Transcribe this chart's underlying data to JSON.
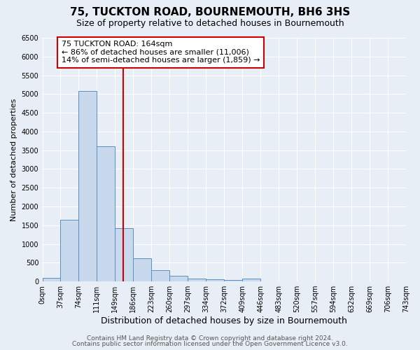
{
  "title": "75, TUCKTON ROAD, BOURNEMOUTH, BH6 3HS",
  "subtitle": "Size of property relative to detached houses in Bournemouth",
  "xlabel": "Distribution of detached houses by size in Bournemouth",
  "ylabel": "Number of detached properties",
  "bar_labels": [
    "0sqm",
    "37sqm",
    "74sqm",
    "111sqm",
    "149sqm",
    "186sqm",
    "223sqm",
    "260sqm",
    "297sqm",
    "334sqm",
    "372sqm",
    "409sqm",
    "446sqm",
    "483sqm",
    "520sqm",
    "557sqm",
    "594sqm",
    "632sqm",
    "669sqm",
    "706sqm",
    "743sqm"
  ],
  "bar_values": [
    100,
    1650,
    5080,
    3600,
    1430,
    620,
    300,
    150,
    80,
    50,
    30,
    80,
    10,
    0,
    0,
    0,
    0,
    0,
    0,
    0,
    0
  ],
  "bar_color": "#c8d8ed",
  "bar_edge_color": "#5a8fc0",
  "bg_color": "#e8eef5",
  "grid_color": "#ffffff",
  "property_size": 164,
  "bin_width": 37,
  "annotation_text": "75 TUCKTON ROAD: 164sqm\n← 86% of detached houses are smaller (11,006)\n14% of semi-detached houses are larger (1,859) →",
  "annotation_box_color": "#ffffff",
  "annotation_box_edge": "#cc0000",
  "red_line_color": "#cc0000",
  "ylim": [
    0,
    6500
  ],
  "yticks": [
    0,
    500,
    1000,
    1500,
    2000,
    2500,
    3000,
    3500,
    4000,
    4500,
    5000,
    5500,
    6000,
    6500
  ],
  "footer1": "Contains HM Land Registry data © Crown copyright and database right 2024.",
  "footer2": "Contains public sector information licensed under the Open Government Licence v3.0.",
  "title_fontsize": 11,
  "subtitle_fontsize": 9,
  "xlabel_fontsize": 9,
  "ylabel_fontsize": 8,
  "tick_fontsize": 7,
  "annot_fontsize": 8,
  "footer_fontsize": 6.5
}
